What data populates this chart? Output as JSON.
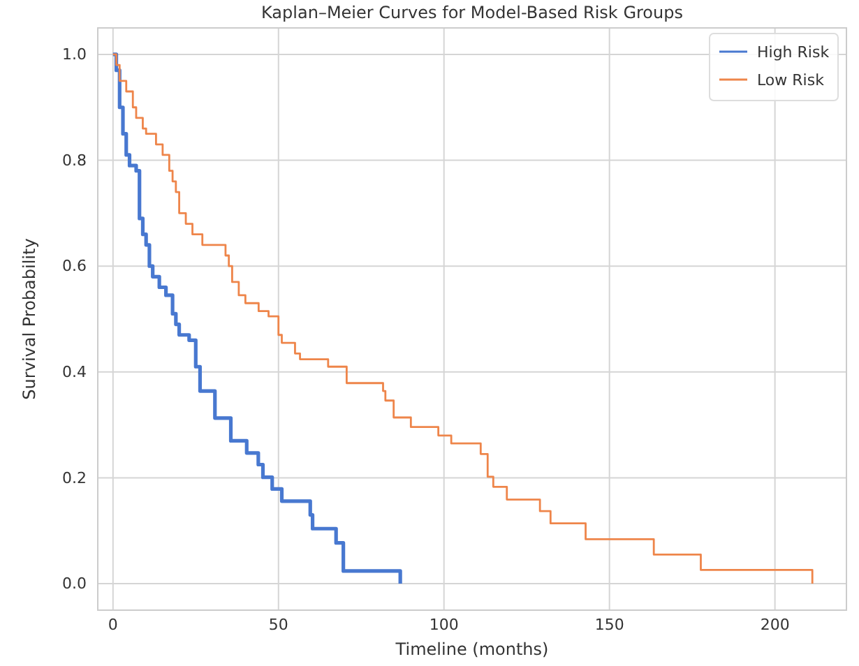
{
  "chart_data": {
    "type": "step",
    "title": "Kaplan–Meier Curves for Model-Based Risk Groups",
    "xlabel": "Timeline (months)",
    "ylabel": "Survival Probability",
    "xlim": [
      -4.6,
      221.6
    ],
    "ylim": [
      -0.05,
      1.05
    ],
    "xticks": [
      0,
      50,
      100,
      150,
      200
    ],
    "yticks": [
      {
        "value": 0,
        "label": "0.0"
      },
      {
        "value": 0.2,
        "label": "0.2"
      },
      {
        "value": 0.4,
        "label": "0.4"
      },
      {
        "value": 0.6,
        "label": "0.6"
      },
      {
        "value": 0.8,
        "label": "0.8"
      },
      {
        "value": 1,
        "label": "1.0"
      }
    ],
    "grid": true,
    "legend": "top right",
    "line_style": "solid",
    "marker": "none",
    "series": [
      {
        "name": "High Risk",
        "color": "#4878d0",
        "x": [
          0,
          1,
          2,
          3,
          4,
          5,
          7,
          8,
          9,
          10,
          11,
          12,
          14,
          16,
          18,
          19,
          20,
          23,
          25,
          26.3,
          30.8,
          35.6,
          40.4,
          43.9,
          45.3,
          48.1,
          51,
          59.6,
          60.3,
          67.4,
          69.6,
          86.8
        ],
        "values": [
          1,
          0.97,
          0.9,
          0.85,
          0.81,
          0.79,
          0.78,
          0.69,
          0.66,
          0.64,
          0.6,
          0.58,
          0.56,
          0.545,
          0.51,
          0.49,
          0.47,
          0.46,
          0.41,
          0.364,
          0.313,
          0.27,
          0.247,
          0.225,
          0.201,
          0.179,
          0.156,
          0.13,
          0.104,
          0.077,
          0.024,
          0
        ]
      },
      {
        "name": "Low Risk",
        "color": "#ee854a",
        "x": [
          0,
          1,
          2,
          4,
          6,
          7,
          9,
          10,
          13,
          15,
          17,
          18,
          19,
          20,
          22,
          24,
          27,
          34,
          35,
          36,
          38,
          40,
          44,
          47,
          50,
          51,
          55,
          56.5,
          65,
          70.6,
          81.6,
          82.3,
          84.8,
          90,
          98.3,
          102.2,
          111.1,
          113.2,
          114.9,
          119,
          129,
          132.2,
          142.8,
          163.4,
          177.6,
          211.3
        ],
        "values": [
          1,
          0.98,
          0.95,
          0.93,
          0.9,
          0.88,
          0.86,
          0.85,
          0.83,
          0.81,
          0.78,
          0.76,
          0.74,
          0.7,
          0.68,
          0.66,
          0.64,
          0.62,
          0.6,
          0.57,
          0.545,
          0.53,
          0.515,
          0.505,
          0.47,
          0.455,
          0.435,
          0.424,
          0.41,
          0.379,
          0.364,
          0.346,
          0.314,
          0.296,
          0.28,
          0.265,
          0.245,
          0.202,
          0.183,
          0.159,
          0.137,
          0.114,
          0.084,
          0.055,
          0.026,
          0
        ]
      }
    ]
  }
}
